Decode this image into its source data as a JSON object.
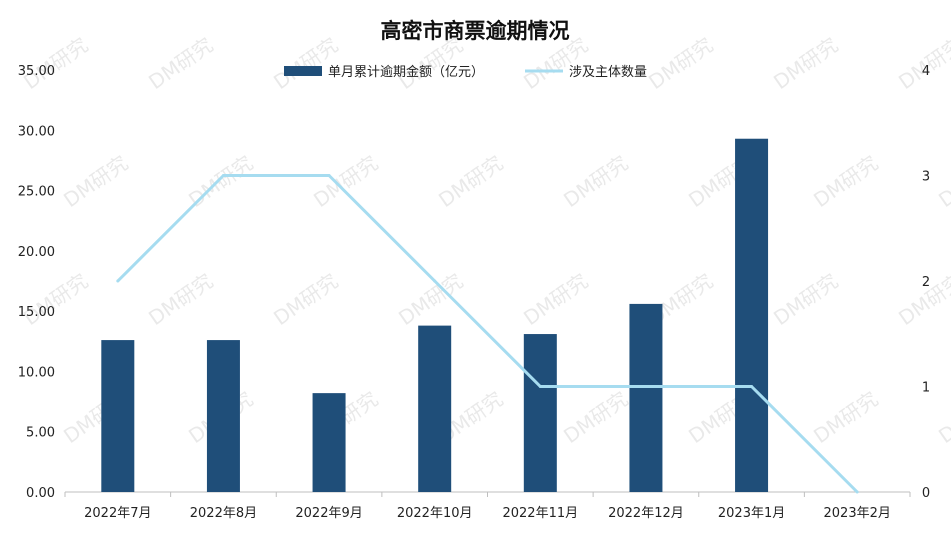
{
  "chart_data": {
    "type": "bar",
    "title": "高密市商票逾期情况",
    "categories": [
      "2022年7月",
      "2022年8月",
      "2022年9月",
      "2022年10月",
      "2022年11月",
      "2022年12月",
      "2023年1月",
      "2023年2月"
    ],
    "series": [
      {
        "name": "单月累计逾期金额（亿元）",
        "type": "bar",
        "axis": "left",
        "color": "#1f4e79",
        "values": [
          12.6,
          12.6,
          8.2,
          13.8,
          13.1,
          15.6,
          29.3,
          0
        ]
      },
      {
        "name": "涉及主体数量",
        "type": "line",
        "axis": "right",
        "color": "#a6dcf0",
        "values": [
          2,
          3,
          3,
          2,
          1,
          1,
          1,
          0
        ]
      }
    ],
    "y_left": {
      "ylim": [
        0,
        35
      ],
      "ticks": [
        "0.00",
        "5.00",
        "10.00",
        "15.00",
        "20.00",
        "25.00",
        "30.00",
        "35.00"
      ]
    },
    "y_right": {
      "ylim": [
        0,
        4
      ],
      "ticks": [
        "0",
        "1",
        "2",
        "3",
        "4"
      ]
    },
    "grid": false,
    "legend": "top-center"
  },
  "watermark": "DM研究"
}
